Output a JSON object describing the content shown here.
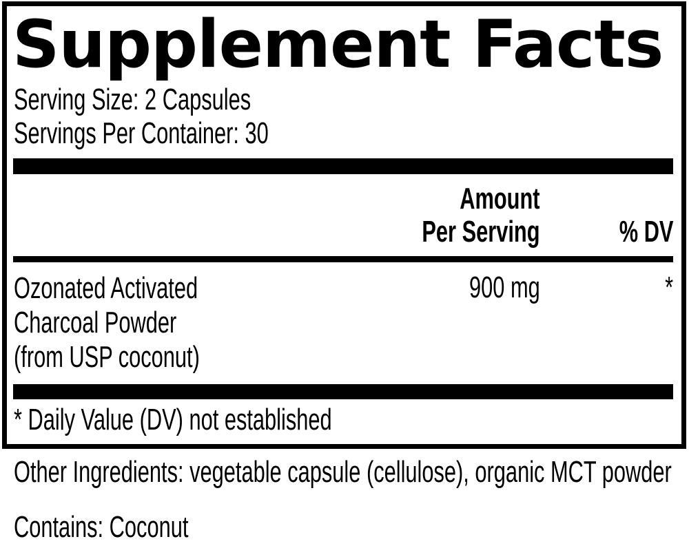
{
  "label": {
    "title": "Supplement Facts",
    "serving_size": "Serving Size: 2 Capsules",
    "servings_per_container": "Servings Per Container: 30",
    "columns": {
      "amount_line1": "Amount",
      "amount_line2": "Per Serving",
      "dv": "% DV"
    },
    "rows": [
      {
        "name_lines": [
          "Ozonated Activated",
          "Charcoal Powder",
          "(from USP coconut)"
        ],
        "amount": "900 mg",
        "dv": "*"
      }
    ],
    "footnote": "* Daily Value (DV) not established"
  },
  "other_ingredients": "Other Ingredients: vegetable capsule (cellulose), organic MCT powder",
  "contains": "Contains: Coconut",
  "colors": {
    "text": "#000000",
    "background": "#ffffff",
    "rule": "#000000"
  }
}
